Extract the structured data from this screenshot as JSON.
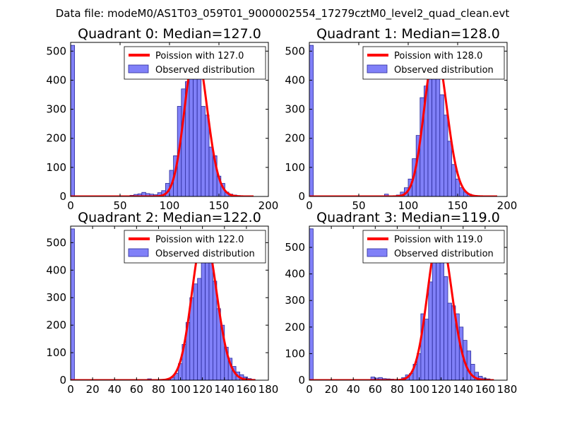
{
  "figure_title": "Data file: modeM0/AS1T03_059T01_9000002554_17279cztM0_level2_quad_clean.evt",
  "colors": {
    "bar_fill": "#8080f8",
    "bar_edge": "#2a2a9a",
    "curve": "#ff0000",
    "background": "#ffffff",
    "axes": "#000000"
  },
  "chart_data": [
    {
      "type": "bar",
      "title": "Quadrant 0: Median=127.0",
      "xlim": [
        0,
        200
      ],
      "ylim": [
        0,
        530
      ],
      "xticks": [
        0,
        50,
        100,
        150,
        200
      ],
      "yticks": [
        0,
        100,
        200,
        300,
        400,
        500
      ],
      "bin_width": 4,
      "bars": [
        {
          "x": 0,
          "h": 520
        },
        {
          "x": 60,
          "h": 4
        },
        {
          "x": 64,
          "h": 7
        },
        {
          "x": 68,
          "h": 9
        },
        {
          "x": 72,
          "h": 14
        },
        {
          "x": 76,
          "h": 10
        },
        {
          "x": 80,
          "h": 8
        },
        {
          "x": 84,
          "h": 6
        },
        {
          "x": 88,
          "h": 13
        },
        {
          "x": 92,
          "h": 20
        },
        {
          "x": 96,
          "h": 45
        },
        {
          "x": 100,
          "h": 90
        },
        {
          "x": 104,
          "h": 140
        },
        {
          "x": 108,
          "h": 310
        },
        {
          "x": 112,
          "h": 370
        },
        {
          "x": 116,
          "h": 395
        },
        {
          "x": 120,
          "h": 430
        },
        {
          "x": 124,
          "h": 450
        },
        {
          "x": 128,
          "h": 435
        },
        {
          "x": 132,
          "h": 310
        },
        {
          "x": 136,
          "h": 280
        },
        {
          "x": 140,
          "h": 170
        },
        {
          "x": 144,
          "h": 140
        },
        {
          "x": 148,
          "h": 70
        },
        {
          "x": 152,
          "h": 45
        },
        {
          "x": 156,
          "h": 15
        },
        {
          "x": 160,
          "h": 8
        },
        {
          "x": 164,
          "h": 5
        },
        {
          "x": 168,
          "h": 3
        }
      ],
      "legend": {
        "location": "upper right",
        "line_label": "Poission with 127.0",
        "bar_label": "Observed distribution"
      },
      "curve": {
        "label": "Poission with 127.0",
        "mu": 127.0,
        "x_range": [
          0,
          185
        ]
      }
    },
    {
      "type": "bar",
      "title": "Quadrant 1: Median=128.0",
      "xlim": [
        0,
        200
      ],
      "ylim": [
        0,
        530
      ],
      "xticks": [
        0,
        50,
        100,
        150,
        200
      ],
      "yticks": [
        0,
        100,
        200,
        300,
        400,
        500
      ],
      "bin_width": 4,
      "bars": [
        {
          "x": 0,
          "h": 520
        },
        {
          "x": 76,
          "h": 8
        },
        {
          "x": 88,
          "h": 5
        },
        {
          "x": 92,
          "h": 15
        },
        {
          "x": 96,
          "h": 30
        },
        {
          "x": 100,
          "h": 60
        },
        {
          "x": 104,
          "h": 130
        },
        {
          "x": 108,
          "h": 210
        },
        {
          "x": 112,
          "h": 340
        },
        {
          "x": 116,
          "h": 380
        },
        {
          "x": 120,
          "h": 430
        },
        {
          "x": 124,
          "h": 460
        },
        {
          "x": 128,
          "h": 440
        },
        {
          "x": 132,
          "h": 350
        },
        {
          "x": 136,
          "h": 280
        },
        {
          "x": 140,
          "h": 190
        },
        {
          "x": 144,
          "h": 110
        },
        {
          "x": 148,
          "h": 60
        },
        {
          "x": 152,
          "h": 30
        },
        {
          "x": 156,
          "h": 15
        },
        {
          "x": 160,
          "h": 8
        },
        {
          "x": 164,
          "h": 4
        }
      ],
      "legend": {
        "location": "upper right",
        "line_label": "Poission with 128.0",
        "bar_label": "Observed distribution"
      },
      "curve": {
        "label": "Poission with 128.0",
        "mu": 128.0,
        "x_range": [
          0,
          190
        ]
      }
    },
    {
      "type": "bar",
      "title": "Quadrant 2: Median=122.0",
      "xlim": [
        0,
        180
      ],
      "ylim": [
        0,
        560
      ],
      "xticks": [
        0,
        20,
        40,
        60,
        80,
        100,
        120,
        140,
        160,
        180
      ],
      "yticks": [
        0,
        100,
        200,
        300,
        400,
        500
      ],
      "bin_width": 3.5,
      "bars": [
        {
          "x": 0,
          "h": 550
        },
        {
          "x": 70,
          "h": 5
        },
        {
          "x": 84,
          "h": 3
        },
        {
          "x": 87.5,
          "h": 4
        },
        {
          "x": 91,
          "h": 10
        },
        {
          "x": 94.5,
          "h": 25
        },
        {
          "x": 98,
          "h": 60
        },
        {
          "x": 101.5,
          "h": 130
        },
        {
          "x": 105,
          "h": 210
        },
        {
          "x": 108.5,
          "h": 300
        },
        {
          "x": 112,
          "h": 350
        },
        {
          "x": 115.5,
          "h": 370
        },
        {
          "x": 119,
          "h": 480
        },
        {
          "x": 122.5,
          "h": 520
        },
        {
          "x": 126,
          "h": 450
        },
        {
          "x": 129.5,
          "h": 360
        },
        {
          "x": 133,
          "h": 260
        },
        {
          "x": 136.5,
          "h": 200
        },
        {
          "x": 140,
          "h": 120
        },
        {
          "x": 143.5,
          "h": 80
        },
        {
          "x": 147,
          "h": 50
        },
        {
          "x": 150.5,
          "h": 30
        },
        {
          "x": 154,
          "h": 20
        },
        {
          "x": 157.5,
          "h": 12
        },
        {
          "x": 161,
          "h": 6
        },
        {
          "x": 164.5,
          "h": 3
        }
      ],
      "legend": {
        "location": "upper right",
        "line_label": "Poission with 122.0",
        "bar_label": "Observed distribution"
      },
      "curve": {
        "label": "Poission with 122.0",
        "mu": 122.0,
        "x_range": [
          0,
          168
        ]
      }
    },
    {
      "type": "bar",
      "title": "Quadrant 3: Median=119.0",
      "xlim": [
        0,
        180
      ],
      "ylim": [
        0,
        580
      ],
      "xticks": [
        0,
        20,
        40,
        60,
        80,
        100,
        120,
        140,
        160,
        180
      ],
      "yticks": [
        0,
        100,
        200,
        300,
        400,
        500
      ],
      "bin_width": 3.5,
      "bars": [
        {
          "x": 0,
          "h": 570
        },
        {
          "x": 56,
          "h": 12
        },
        {
          "x": 59.5,
          "h": 8
        },
        {
          "x": 63,
          "h": 10
        },
        {
          "x": 66.5,
          "h": 6
        },
        {
          "x": 70,
          "h": 5
        },
        {
          "x": 73.5,
          "h": 4
        },
        {
          "x": 77,
          "h": 3
        },
        {
          "x": 84,
          "h": 10
        },
        {
          "x": 87.5,
          "h": 20
        },
        {
          "x": 91,
          "h": 25
        },
        {
          "x": 94.5,
          "h": 60
        },
        {
          "x": 98,
          "h": 100
        },
        {
          "x": 101.5,
          "h": 250
        },
        {
          "x": 105,
          "h": 230
        },
        {
          "x": 108.5,
          "h": 370
        },
        {
          "x": 112,
          "h": 510
        },
        {
          "x": 115.5,
          "h": 470
        },
        {
          "x": 119,
          "h": 550
        },
        {
          "x": 122.5,
          "h": 390
        },
        {
          "x": 126,
          "h": 290
        },
        {
          "x": 129.5,
          "h": 280
        },
        {
          "x": 133,
          "h": 250
        },
        {
          "x": 136.5,
          "h": 200
        },
        {
          "x": 140,
          "h": 150
        },
        {
          "x": 143.5,
          "h": 110
        },
        {
          "x": 147,
          "h": 60
        },
        {
          "x": 150.5,
          "h": 30
        },
        {
          "x": 154,
          "h": 15
        },
        {
          "x": 157.5,
          "h": 8
        },
        {
          "x": 161,
          "h": 5
        }
      ],
      "legend": {
        "location": "upper right",
        "line_label": "Poission with 119.0",
        "bar_label": "Observed distribution"
      },
      "curve": {
        "label": "Poission with 119.0",
        "mu": 119.0,
        "x_range": [
          0,
          168
        ]
      }
    }
  ]
}
